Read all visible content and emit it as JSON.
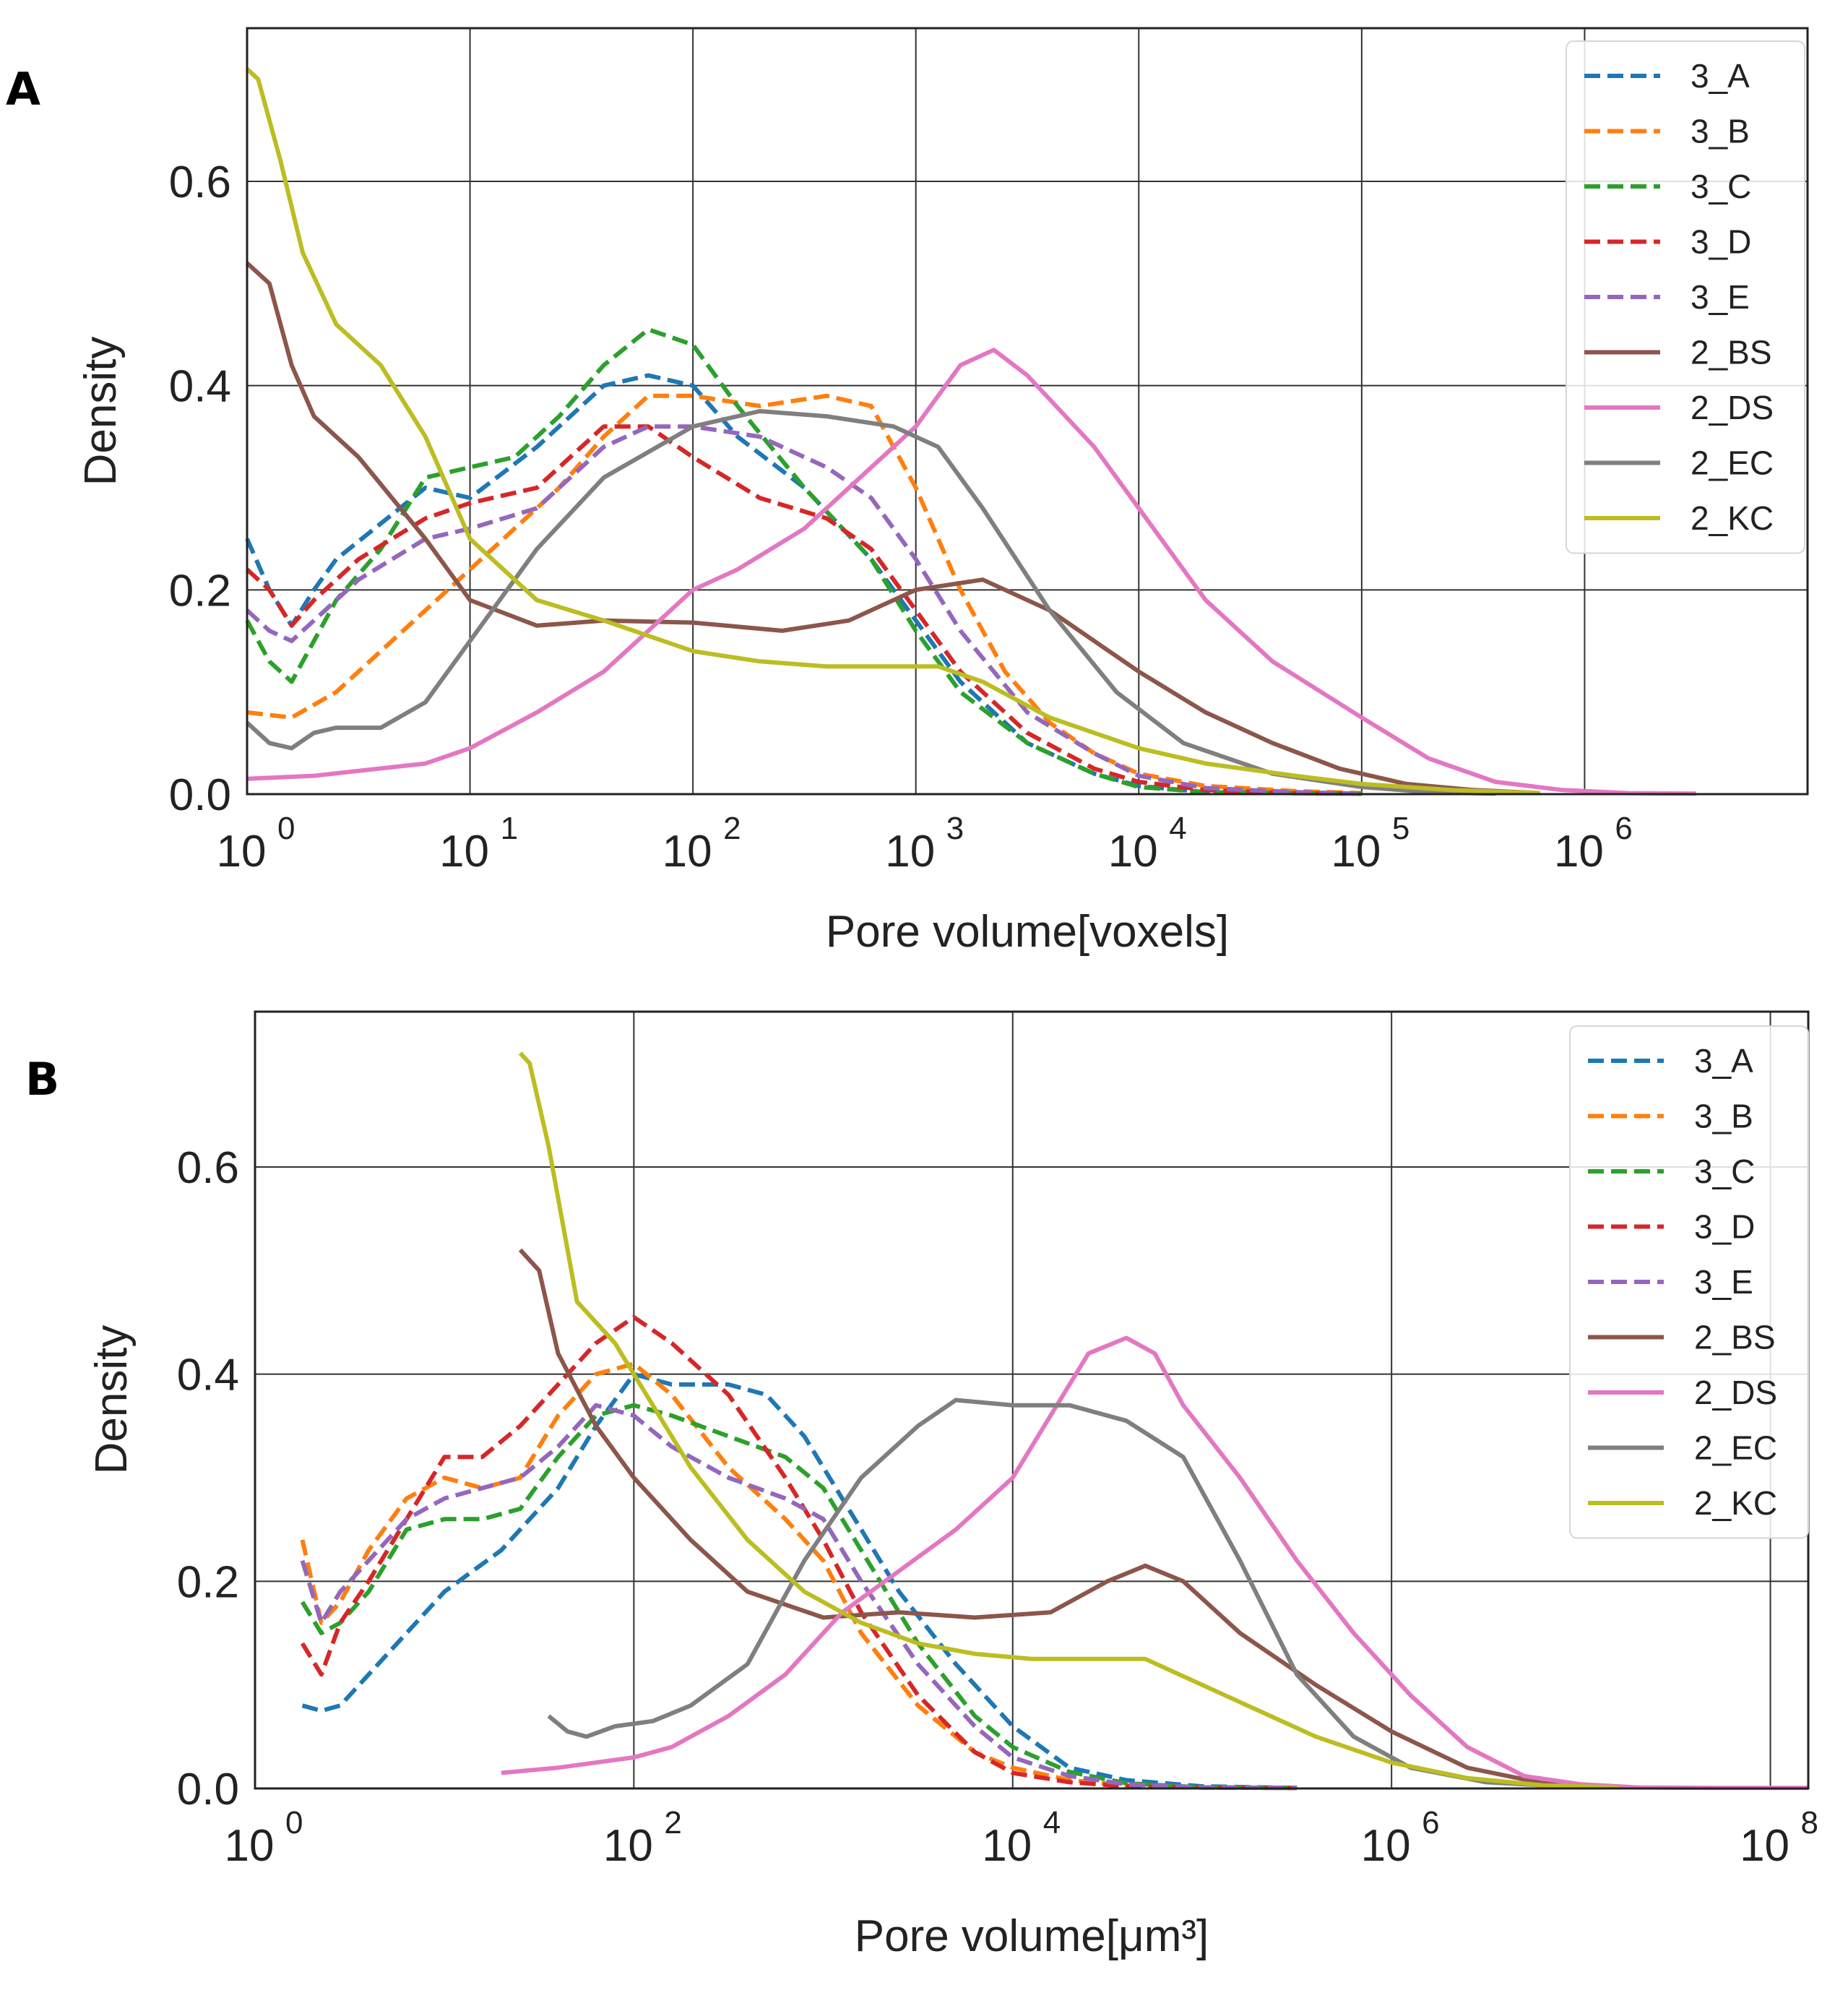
{
  "figure": {
    "panels": [
      "A",
      "B"
    ],
    "legend_location": "top-right"
  },
  "colors": {
    "3_A": "#1f77b4",
    "3_B": "#ff7f0e",
    "3_C": "#2ca02c",
    "3_D": "#d62728",
    "3_E": "#9467bd",
    "2_BS": "#8c564b",
    "2_DS": "#e377c2",
    "2_EC": "#7f7f7f",
    "2_KC": "#bcbd22"
  },
  "chart_data": [
    {
      "type": "line",
      "panel": "A",
      "title": "",
      "xlabel": "Pore volume[voxels]",
      "ylabel": "Density",
      "xscale": "log",
      "xlim_log10": [
        0,
        7
      ],
      "ylim": [
        0,
        0.75
      ],
      "xticks": [
        {
          "base": "10",
          "exp": "0"
        },
        {
          "base": "10",
          "exp": "1"
        },
        {
          "base": "10",
          "exp": "2"
        },
        {
          "base": "10",
          "exp": "3"
        },
        {
          "base": "10",
          "exp": "4"
        },
        {
          "base": "10",
          "exp": "5"
        },
        {
          "base": "10",
          "exp": "6"
        }
      ],
      "xtick_positions_log10": [
        0,
        1,
        2,
        3,
        4,
        5,
        6
      ],
      "yticks": [
        "0.0",
        "0.2",
        "0.4",
        "0.6"
      ],
      "ytick_values": [
        0,
        0.2,
        0.4,
        0.6
      ],
      "grid": true,
      "x_values_note": "x values are log10(pore volume)",
      "series": [
        {
          "name": "3_A",
          "dashed": true,
          "x": [
            0,
            0.1,
            0.2,
            0.3,
            0.4,
            0.6,
            0.8,
            1.0,
            1.3,
            1.6,
            1.8,
            2.0,
            2.2,
            2.5,
            2.8,
            3.0,
            3.2,
            3.5,
            3.8,
            4.0,
            4.3,
            4.7,
            5.0
          ],
          "y": [
            0.25,
            0.2,
            0.165,
            0.2,
            0.23,
            0.265,
            0.3,
            0.29,
            0.34,
            0.4,
            0.41,
            0.4,
            0.35,
            0.3,
            0.23,
            0.17,
            0.11,
            0.05,
            0.02,
            0.008,
            0.002,
            0.001,
            0.0005
          ]
        },
        {
          "name": "3_B",
          "dashed": true,
          "x": [
            0,
            0.2,
            0.4,
            0.6,
            0.8,
            1.0,
            1.2,
            1.4,
            1.6,
            1.8,
            2.0,
            2.3,
            2.6,
            2.8,
            3.0,
            3.2,
            3.4,
            3.6,
            3.8,
            4.0,
            4.3,
            4.7,
            5.0
          ],
          "y": [
            0.08,
            0.075,
            0.1,
            0.14,
            0.18,
            0.22,
            0.26,
            0.3,
            0.35,
            0.39,
            0.39,
            0.38,
            0.39,
            0.38,
            0.3,
            0.2,
            0.12,
            0.07,
            0.04,
            0.02,
            0.008,
            0.003,
            0.001
          ]
        },
        {
          "name": "3_C",
          "dashed": true,
          "x": [
            0,
            0.1,
            0.2,
            0.3,
            0.4,
            0.6,
            0.8,
            1.0,
            1.2,
            1.4,
            1.6,
            1.8,
            2.0,
            2.2,
            2.5,
            2.8,
            3.0,
            3.2,
            3.5,
            3.8,
            4.0,
            4.3,
            4.7,
            5.0
          ],
          "y": [
            0.17,
            0.13,
            0.11,
            0.15,
            0.19,
            0.24,
            0.31,
            0.32,
            0.33,
            0.37,
            0.42,
            0.455,
            0.44,
            0.38,
            0.3,
            0.23,
            0.16,
            0.1,
            0.05,
            0.02,
            0.007,
            0.002,
            0.001,
            0.0005
          ]
        },
        {
          "name": "3_D",
          "dashed": true,
          "x": [
            0,
            0.1,
            0.2,
            0.3,
            0.5,
            0.8,
            1.0,
            1.3,
            1.6,
            1.8,
            2.0,
            2.3,
            2.6,
            2.8,
            3.0,
            3.2,
            3.5,
            3.8,
            4.0,
            4.3,
            4.7,
            5.0
          ],
          "y": [
            0.22,
            0.2,
            0.165,
            0.19,
            0.23,
            0.27,
            0.285,
            0.3,
            0.36,
            0.36,
            0.33,
            0.29,
            0.27,
            0.24,
            0.18,
            0.12,
            0.06,
            0.025,
            0.012,
            0.004,
            0.001,
            0.0005
          ]
        },
        {
          "name": "3_E",
          "dashed": true,
          "x": [
            0,
            0.1,
            0.2,
            0.3,
            0.5,
            0.8,
            1.0,
            1.3,
            1.6,
            1.8,
            2.0,
            2.3,
            2.6,
            2.8,
            3.0,
            3.2,
            3.5,
            3.8,
            4.0,
            4.3,
            4.7,
            5.0
          ],
          "y": [
            0.18,
            0.16,
            0.15,
            0.17,
            0.21,
            0.25,
            0.26,
            0.28,
            0.34,
            0.36,
            0.36,
            0.35,
            0.32,
            0.29,
            0.23,
            0.16,
            0.08,
            0.04,
            0.018,
            0.006,
            0.002,
            0.0005
          ]
        },
        {
          "name": "2_BS",
          "dashed": false,
          "x": [
            0,
            0.1,
            0.2,
            0.3,
            0.5,
            0.8,
            1.0,
            1.3,
            1.6,
            2.0,
            2.4,
            2.7,
            3.0,
            3.3,
            3.6,
            4.0,
            4.3,
            4.6,
            4.9,
            5.2,
            5.5,
            5.8
          ],
          "y": [
            0.52,
            0.5,
            0.42,
            0.37,
            0.33,
            0.25,
            0.19,
            0.165,
            0.17,
            0.168,
            0.16,
            0.17,
            0.2,
            0.21,
            0.18,
            0.12,
            0.08,
            0.05,
            0.025,
            0.01,
            0.004,
            0.001
          ]
        },
        {
          "name": "2_DS",
          "dashed": false,
          "x": [
            0,
            0.3,
            0.8,
            1.0,
            1.3,
            1.6,
            1.8,
            2.0,
            2.2,
            2.5,
            2.7,
            3.0,
            3.2,
            3.35,
            3.5,
            3.8,
            4.0,
            4.3,
            4.6,
            5.0,
            5.3,
            5.6,
            5.9,
            6.2,
            6.5
          ],
          "y": [
            0.015,
            0.018,
            0.03,
            0.045,
            0.08,
            0.12,
            0.16,
            0.2,
            0.22,
            0.26,
            0.3,
            0.36,
            0.42,
            0.435,
            0.41,
            0.34,
            0.28,
            0.19,
            0.13,
            0.075,
            0.035,
            0.012,
            0.004,
            0.001,
            0.0005
          ]
        },
        {
          "name": "2_EC",
          "dashed": false,
          "x": [
            0,
            0.1,
            0.2,
            0.3,
            0.4,
            0.6,
            0.8,
            1.0,
            1.3,
            1.6,
            2.0,
            2.3,
            2.6,
            2.9,
            3.1,
            3.3,
            3.6,
            3.9,
            4.2,
            4.6,
            5.0,
            5.3,
            5.6
          ],
          "y": [
            0.07,
            0.05,
            0.045,
            0.06,
            0.065,
            0.065,
            0.09,
            0.15,
            0.24,
            0.31,
            0.36,
            0.375,
            0.37,
            0.36,
            0.34,
            0.28,
            0.18,
            0.1,
            0.05,
            0.02,
            0.007,
            0.002,
            0.0005
          ]
        },
        {
          "name": "2_KC",
          "dashed": false,
          "x": [
            0,
            0.05,
            0.15,
            0.25,
            0.4,
            0.6,
            0.8,
            1.0,
            1.3,
            1.6,
            2.0,
            2.3,
            2.6,
            2.9,
            3.1,
            3.3,
            3.6,
            4.0,
            4.3,
            4.7,
            5.0,
            5.4,
            5.8
          ],
          "y": [
            0.71,
            0.7,
            0.62,
            0.53,
            0.46,
            0.42,
            0.35,
            0.25,
            0.19,
            0.17,
            0.14,
            0.13,
            0.125,
            0.125,
            0.125,
            0.11,
            0.075,
            0.045,
            0.03,
            0.018,
            0.01,
            0.004,
            0.001
          ]
        }
      ]
    },
    {
      "type": "line",
      "panel": "B",
      "title": "",
      "xlabel": "Pore volume[μm³]",
      "ylabel": "Density",
      "xscale": "log",
      "xlim_log10": [
        0,
        8.2
      ],
      "ylim": [
        0,
        0.75
      ],
      "xticks": [
        {
          "base": "10",
          "exp": "0"
        },
        {
          "base": "10",
          "exp": "2"
        },
        {
          "base": "10",
          "exp": "4"
        },
        {
          "base": "10",
          "exp": "6"
        },
        {
          "base": "10",
          "exp": "8"
        }
      ],
      "xtick_positions_log10": [
        0,
        2,
        4,
        6,
        8
      ],
      "yticks": [
        "0.0",
        "0.2",
        "0.4",
        "0.6"
      ],
      "ytick_values": [
        0,
        0.2,
        0.4,
        0.6
      ],
      "grid": true,
      "x_values_note": "x values are log10(pore volume)",
      "series": [
        {
          "name": "3_A",
          "dashed": true,
          "x": [
            0.25,
            0.35,
            0.45,
            0.6,
            0.8,
            1.0,
            1.3,
            1.6,
            1.8,
            2.0,
            2.2,
            2.5,
            2.7,
            2.9,
            3.1,
            3.4,
            3.7,
            4.0,
            4.3,
            4.6,
            5.0,
            5.5
          ],
          "y": [
            0.08,
            0.075,
            0.08,
            0.11,
            0.15,
            0.19,
            0.23,
            0.29,
            0.35,
            0.4,
            0.39,
            0.39,
            0.38,
            0.34,
            0.28,
            0.19,
            0.12,
            0.06,
            0.02,
            0.008,
            0.002,
            0.0005
          ]
        },
        {
          "name": "3_B",
          "dashed": true,
          "x": [
            0.25,
            0.35,
            0.45,
            0.6,
            0.8,
            1.0,
            1.2,
            1.4,
            1.6,
            1.8,
            2.0,
            2.2,
            2.5,
            2.8,
            3.0,
            3.2,
            3.5,
            3.8,
            4.0,
            4.3,
            4.6,
            5.0,
            5.5
          ],
          "y": [
            0.24,
            0.16,
            0.18,
            0.23,
            0.28,
            0.3,
            0.29,
            0.3,
            0.36,
            0.4,
            0.41,
            0.38,
            0.31,
            0.26,
            0.22,
            0.15,
            0.08,
            0.035,
            0.02,
            0.008,
            0.003,
            0.001,
            0.0005
          ]
        },
        {
          "name": "3_C",
          "dashed": true,
          "x": [
            0.25,
            0.35,
            0.45,
            0.6,
            0.8,
            1.0,
            1.2,
            1.4,
            1.6,
            1.8,
            2.0,
            2.2,
            2.5,
            2.8,
            3.0,
            3.2,
            3.5,
            3.8,
            4.0,
            4.3,
            4.6,
            5.0,
            5.5
          ],
          "y": [
            0.18,
            0.15,
            0.16,
            0.19,
            0.25,
            0.26,
            0.26,
            0.27,
            0.32,
            0.36,
            0.37,
            0.36,
            0.34,
            0.32,
            0.29,
            0.23,
            0.14,
            0.07,
            0.04,
            0.016,
            0.005,
            0.001,
            0.0005
          ]
        },
        {
          "name": "3_D",
          "dashed": true,
          "x": [
            0.25,
            0.35,
            0.45,
            0.6,
            0.8,
            1.0,
            1.2,
            1.4,
            1.6,
            1.8,
            2.0,
            2.2,
            2.5,
            2.8,
            3.0,
            3.2,
            3.5,
            3.8,
            4.0,
            4.3,
            4.6,
            5.0,
            5.5
          ],
          "y": [
            0.14,
            0.11,
            0.16,
            0.2,
            0.26,
            0.32,
            0.32,
            0.35,
            0.39,
            0.43,
            0.455,
            0.43,
            0.38,
            0.3,
            0.24,
            0.17,
            0.09,
            0.035,
            0.015,
            0.006,
            0.002,
            0.001,
            0.0005
          ]
        },
        {
          "name": "3_E",
          "dashed": true,
          "x": [
            0.25,
            0.35,
            0.45,
            0.6,
            0.8,
            1.0,
            1.2,
            1.4,
            1.6,
            1.8,
            2.0,
            2.2,
            2.5,
            2.8,
            3.0,
            3.2,
            3.5,
            3.8,
            4.0,
            4.3,
            4.6,
            5.0,
            5.5
          ],
          "y": [
            0.22,
            0.16,
            0.19,
            0.22,
            0.26,
            0.28,
            0.29,
            0.3,
            0.33,
            0.37,
            0.36,
            0.33,
            0.3,
            0.28,
            0.26,
            0.2,
            0.12,
            0.06,
            0.03,
            0.012,
            0.004,
            0.001,
            0.0005
          ]
        },
        {
          "name": "2_BS",
          "dashed": false,
          "x": [
            1.4,
            1.5,
            1.6,
            1.8,
            2.0,
            2.3,
            2.6,
            3.0,
            3.4,
            3.8,
            4.2,
            4.5,
            4.7,
            4.9,
            5.2,
            5.6,
            6.0,
            6.4,
            6.8,
            7.2
          ],
          "y": [
            0.52,
            0.5,
            0.42,
            0.35,
            0.3,
            0.24,
            0.19,
            0.165,
            0.17,
            0.165,
            0.17,
            0.2,
            0.215,
            0.2,
            0.15,
            0.1,
            0.055,
            0.02,
            0.005,
            0.001
          ]
        },
        {
          "name": "2_DS",
          "dashed": false,
          "x": [
            1.3,
            1.6,
            2.0,
            2.2,
            2.5,
            2.8,
            3.1,
            3.4,
            3.7,
            4.0,
            4.2,
            4.4,
            4.6,
            4.75,
            4.9,
            5.2,
            5.5,
            5.8,
            6.1,
            6.4,
            6.7,
            7.0,
            7.3,
            7.7,
            8.2
          ],
          "y": [
            0.015,
            0.02,
            0.03,
            0.04,
            0.07,
            0.11,
            0.17,
            0.21,
            0.25,
            0.3,
            0.36,
            0.42,
            0.435,
            0.42,
            0.37,
            0.3,
            0.22,
            0.15,
            0.09,
            0.04,
            0.012,
            0.004,
            0.001,
            0.0005,
            0.0005
          ]
        },
        {
          "name": "2_EC",
          "dashed": false,
          "x": [
            1.55,
            1.65,
            1.75,
            1.9,
            2.1,
            2.3,
            2.6,
            2.9,
            3.2,
            3.5,
            3.7,
            4.0,
            4.3,
            4.6,
            4.9,
            5.2,
            5.5,
            5.8,
            6.1,
            6.5,
            7.0
          ],
          "y": [
            0.07,
            0.055,
            0.05,
            0.06,
            0.065,
            0.08,
            0.12,
            0.22,
            0.3,
            0.35,
            0.375,
            0.37,
            0.37,
            0.355,
            0.32,
            0.22,
            0.11,
            0.05,
            0.02,
            0.006,
            0.001
          ]
        },
        {
          "name": "2_KC",
          "dashed": false,
          "x": [
            1.4,
            1.45,
            1.55,
            1.7,
            1.9,
            2.1,
            2.3,
            2.6,
            2.9,
            3.2,
            3.5,
            3.8,
            4.1,
            4.4,
            4.7,
            5.0,
            5.3,
            5.6,
            6.0,
            6.4,
            6.8,
            7.2
          ],
          "y": [
            0.71,
            0.7,
            0.62,
            0.47,
            0.43,
            0.37,
            0.31,
            0.24,
            0.19,
            0.16,
            0.14,
            0.13,
            0.125,
            0.125,
            0.125,
            0.1,
            0.075,
            0.05,
            0.025,
            0.01,
            0.003,
            0.001
          ]
        }
      ]
    }
  ]
}
